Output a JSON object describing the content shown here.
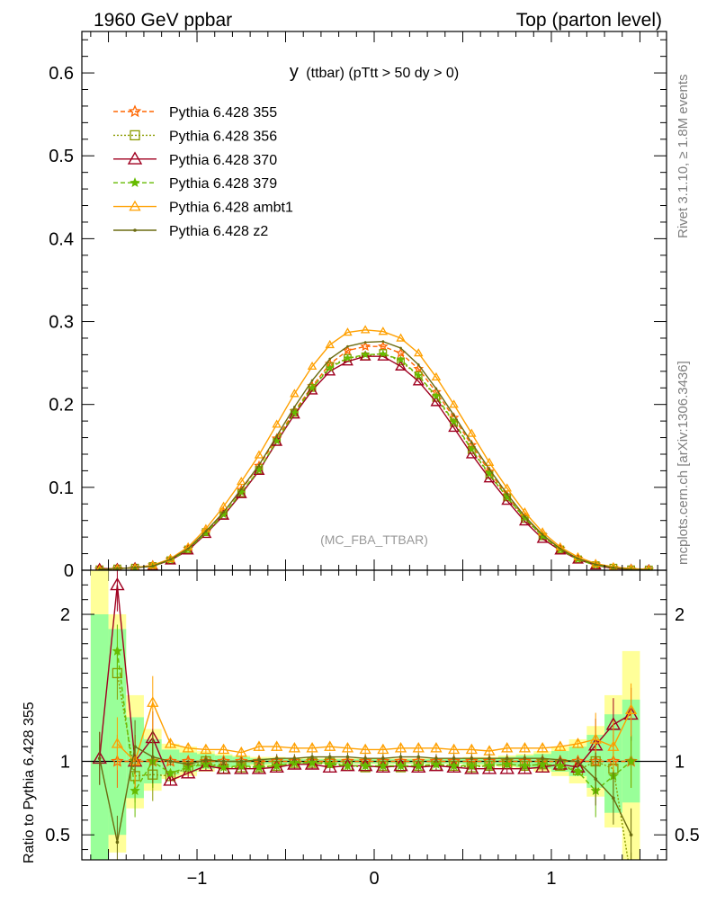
{
  "header": {
    "left": "1960 GeV ppbar",
    "right": "Top (parton level)"
  },
  "side": {
    "rivet": "Rivet 3.1.10, ≥ 1.8M events",
    "mcplots": "mcplots.cern.ch [arXiv:1306.3436]"
  },
  "chart_data": {
    "type": "line",
    "title_main": "y",
    "title_sub": "(ttbar) (pTtt > 50 dy > 0)",
    "watermark": "(MC_FBA_TTBAR)",
    "xlim": [
      -1.65,
      1.65
    ],
    "x_ticks": [
      {
        "v": -1,
        "label": "−1"
      },
      {
        "v": 0,
        "label": "0"
      },
      {
        "v": 1,
        "label": "1"
      }
    ],
    "main": {
      "ylim": [
        0,
        0.65
      ],
      "y_ticks": [
        {
          "v": 0,
          "label": "0"
        },
        {
          "v": 0.1,
          "label": "0.1"
        },
        {
          "v": 0.2,
          "label": "0.2"
        },
        {
          "v": 0.3,
          "label": "0.3"
        },
        {
          "v": 0.4,
          "label": "0.4"
        },
        {
          "v": 0.5,
          "label": "0.5"
        },
        {
          "v": 0.6,
          "label": "0.6"
        }
      ]
    },
    "ratio": {
      "ylabel": "Ratio to Pythia 6.428 355",
      "ylim": [
        0.33,
        2.3
      ],
      "y_ticks": [
        {
          "v": 0.5,
          "label": "0.5"
        },
        {
          "v": 1,
          "label": "1"
        },
        {
          "v": 2,
          "label": "2"
        }
      ]
    },
    "x": [
      -1.55,
      -1.45,
      -1.35,
      -1.25,
      -1.15,
      -1.05,
      -0.95,
      -0.85,
      -0.75,
      -0.65,
      -0.55,
      -0.45,
      -0.35,
      -0.25,
      -0.15,
      -0.05,
      0.05,
      0.15,
      0.25,
      0.35,
      0.45,
      0.55,
      0.65,
      0.75,
      0.85,
      0.95,
      1.05,
      1.15,
      1.25,
      1.35,
      1.45,
      1.55
    ],
    "bands": {
      "x": [
        -1.55,
        -1.45,
        -1.35,
        -1.25,
        -1.15,
        -1.05,
        -0.95,
        -0.85,
        -0.75,
        -0.65,
        -0.55,
        -0.45,
        -0.35,
        -0.25,
        -0.15,
        -0.05,
        0.05,
        0.15,
        0.25,
        0.35,
        0.45,
        0.55,
        0.65,
        0.75,
        0.85,
        0.95,
        1.05,
        1.15,
        1.25,
        1.35,
        1.45
      ],
      "yellow_lo": [
        0.33,
        0.38,
        0.68,
        0.8,
        0.88,
        0.9,
        0.93,
        0.95,
        0.96,
        0.97,
        0.97,
        0.98,
        0.98,
        0.98,
        0.98,
        0.98,
        0.98,
        0.98,
        0.98,
        0.98,
        0.98,
        0.97,
        0.97,
        0.96,
        0.95,
        0.93,
        0.9,
        0.85,
        0.76,
        0.55,
        0.33
      ],
      "yellow_hi": [
        2.3,
        2.0,
        1.45,
        1.22,
        1.12,
        1.1,
        1.07,
        1.05,
        1.04,
        1.03,
        1.03,
        1.02,
        1.02,
        1.02,
        1.02,
        1.02,
        1.02,
        1.02,
        1.02,
        1.02,
        1.02,
        1.03,
        1.03,
        1.04,
        1.05,
        1.07,
        1.1,
        1.15,
        1.24,
        1.45,
        1.75
      ],
      "green_lo": [
        0.33,
        0.5,
        0.75,
        0.85,
        0.91,
        0.93,
        0.95,
        0.96,
        0.97,
        0.98,
        0.98,
        0.985,
        0.985,
        0.985,
        0.985,
        0.985,
        0.985,
        0.985,
        0.985,
        0.985,
        0.985,
        0.98,
        0.98,
        0.97,
        0.96,
        0.95,
        0.93,
        0.9,
        0.82,
        0.65,
        0.72
      ],
      "green_hi": [
        2.0,
        1.9,
        1.3,
        1.15,
        1.08,
        1.06,
        1.05,
        1.04,
        1.03,
        1.02,
        1.02,
        1.015,
        1.015,
        1.015,
        1.015,
        1.015,
        1.015,
        1.015,
        1.015,
        1.015,
        1.015,
        1.02,
        1.02,
        1.03,
        1.04,
        1.05,
        1.07,
        1.1,
        1.18,
        1.32,
        1.42
      ]
    },
    "series": [
      {
        "name": "Pythia 6.428 355",
        "color": "#ff6600",
        "marker": "star-open",
        "dash": "5,3",
        "values": [
          0.001,
          0.002,
          0.003,
          0.006,
          0.013,
          0.026,
          0.046,
          0.07,
          0.097,
          0.126,
          0.159,
          0.192,
          0.222,
          0.249,
          0.265,
          0.27,
          0.27,
          0.262,
          0.243,
          0.215,
          0.184,
          0.151,
          0.119,
          0.09,
          0.064,
          0.042,
          0.026,
          0.014,
          0.007,
          0.003,
          0.001,
          0.0005
        ],
        "ratio": [
          null,
          1.0,
          1.0,
          1.0,
          1.0,
          1.0,
          1.0,
          1.0,
          1.0,
          1.0,
          1.0,
          1.0,
          1.0,
          1.0,
          1.0,
          1.0,
          1.0,
          1.0,
          1.0,
          1.0,
          1.0,
          1.0,
          1.0,
          1.0,
          1.0,
          1.0,
          1.0,
          1.0,
          1.0,
          1.0,
          1.0,
          null
        ]
      },
      {
        "name": "Pythia 6.428 356",
        "color": "#8a9a00",
        "marker": "square-open",
        "dash": "2,2",
        "values": [
          0.001,
          0.002,
          0.003,
          0.005,
          0.012,
          0.025,
          0.046,
          0.066,
          0.093,
          0.121,
          0.155,
          0.19,
          0.22,
          0.246,
          0.256,
          0.258,
          0.262,
          0.252,
          0.235,
          0.208,
          0.178,
          0.145,
          0.115,
          0.088,
          0.062,
          0.041,
          0.025,
          0.013,
          0.006,
          0.003,
          0.001,
          0.0008
        ],
        "ratio": [
          null,
          1.6,
          0.9,
          0.91,
          0.9,
          0.96,
          1.0,
          0.95,
          0.96,
          0.96,
          0.97,
          0.99,
          0.99,
          0.99,
          0.97,
          0.96,
          0.97,
          0.96,
          0.97,
          0.97,
          0.97,
          0.96,
          0.97,
          0.98,
          0.97,
          0.98,
          0.97,
          0.94,
          1.0,
          0.95,
          0.2,
          null
        ]
      },
      {
        "name": "Pythia 6.428 370",
        "color": "#a00020",
        "marker": "triangle-open",
        "dash": "",
        "values": [
          0.002,
          0.002,
          0.003,
          0.005,
          0.012,
          0.024,
          0.044,
          0.066,
          0.092,
          0.12,
          0.155,
          0.188,
          0.217,
          0.24,
          0.252,
          0.258,
          0.258,
          0.246,
          0.228,
          0.203,
          0.172,
          0.14,
          0.111,
          0.084,
          0.059,
          0.038,
          0.024,
          0.013,
          0.006,
          0.002,
          0.001,
          0.0005
        ],
        "ratio": [
          1.02,
          2.2,
          1.0,
          1.16,
          0.87,
          0.92,
          0.97,
          0.95,
          0.95,
          0.95,
          0.96,
          0.98,
          0.98,
          0.96,
          0.97,
          0.97,
          0.96,
          0.97,
          0.96,
          0.97,
          0.96,
          0.95,
          0.95,
          0.95,
          0.95,
          0.96,
          0.98,
          0.96,
          1.11,
          1.25,
          1.32,
          null
        ]
      },
      {
        "name": "Pythia 6.428 379",
        "color": "#66bb00",
        "marker": "star-filled",
        "dash": "5,3",
        "values": [
          0.001,
          0.002,
          0.003,
          0.005,
          0.012,
          0.025,
          0.045,
          0.067,
          0.094,
          0.121,
          0.156,
          0.19,
          0.22,
          0.244,
          0.256,
          0.26,
          0.261,
          0.254,
          0.235,
          0.21,
          0.179,
          0.146,
          0.116,
          0.088,
          0.063,
          0.041,
          0.025,
          0.013,
          0.006,
          0.003,
          0.001,
          0.0005
        ],
        "ratio": [
          null,
          1.75,
          0.8,
          1.0,
          0.92,
          0.96,
          0.98,
          0.96,
          0.97,
          0.96,
          0.97,
          0.99,
          0.99,
          0.98,
          0.97,
          0.97,
          0.97,
          0.97,
          0.97,
          0.98,
          0.97,
          0.97,
          0.97,
          0.98,
          0.97,
          0.98,
          0.97,
          0.93,
          0.8,
          0.9,
          1.0,
          null
        ]
      },
      {
        "name": "Pythia 6.428 ambt1",
        "color": "#ffa000",
        "marker": "triangle-open-small",
        "dash": "",
        "values": [
          0.001,
          0.002,
          0.003,
          0.006,
          0.014,
          0.028,
          0.05,
          0.077,
          0.107,
          0.139,
          0.176,
          0.213,
          0.246,
          0.272,
          0.287,
          0.29,
          0.288,
          0.28,
          0.262,
          0.233,
          0.2,
          0.165,
          0.13,
          0.099,
          0.07,
          0.046,
          0.028,
          0.016,
          0.008,
          0.004,
          0.002,
          0.001
        ],
        "ratio": [
          null,
          1.12,
          1.0,
          1.4,
          1.12,
          1.09,
          1.08,
          1.08,
          1.06,
          1.1,
          1.1,
          1.09,
          1.09,
          1.1,
          1.09,
          1.08,
          1.08,
          1.09,
          1.09,
          1.09,
          1.08,
          1.08,
          1.07,
          1.09,
          1.09,
          1.09,
          1.1,
          1.12,
          1.15,
          1.1,
          1.35,
          null
        ]
      },
      {
        "name": "Pythia 6.428 z2",
        "color": "#6b6b10",
        "marker": "dot",
        "dash": "",
        "values": [
          0.001,
          0.002,
          0.003,
          0.005,
          0.013,
          0.026,
          0.047,
          0.07,
          0.098,
          0.127,
          0.162,
          0.197,
          0.229,
          0.255,
          0.27,
          0.275,
          0.276,
          0.268,
          0.248,
          0.219,
          0.187,
          0.154,
          0.122,
          0.092,
          0.065,
          0.043,
          0.026,
          0.014,
          0.007,
          0.003,
          0.001,
          0.0005
        ],
        "ratio": [
          1.02,
          0.45,
          1.1,
          1.03,
          1.0,
          0.98,
          1.01,
          1.0,
          1.0,
          1.01,
          1.02,
          1.02,
          1.03,
          1.03,
          1.03,
          1.02,
          1.02,
          1.03,
          1.03,
          1.02,
          1.02,
          1.02,
          1.02,
          1.02,
          1.02,
          1.02,
          1.01,
          1.0,
          0.88,
          0.75,
          0.5,
          null
        ]
      }
    ]
  }
}
